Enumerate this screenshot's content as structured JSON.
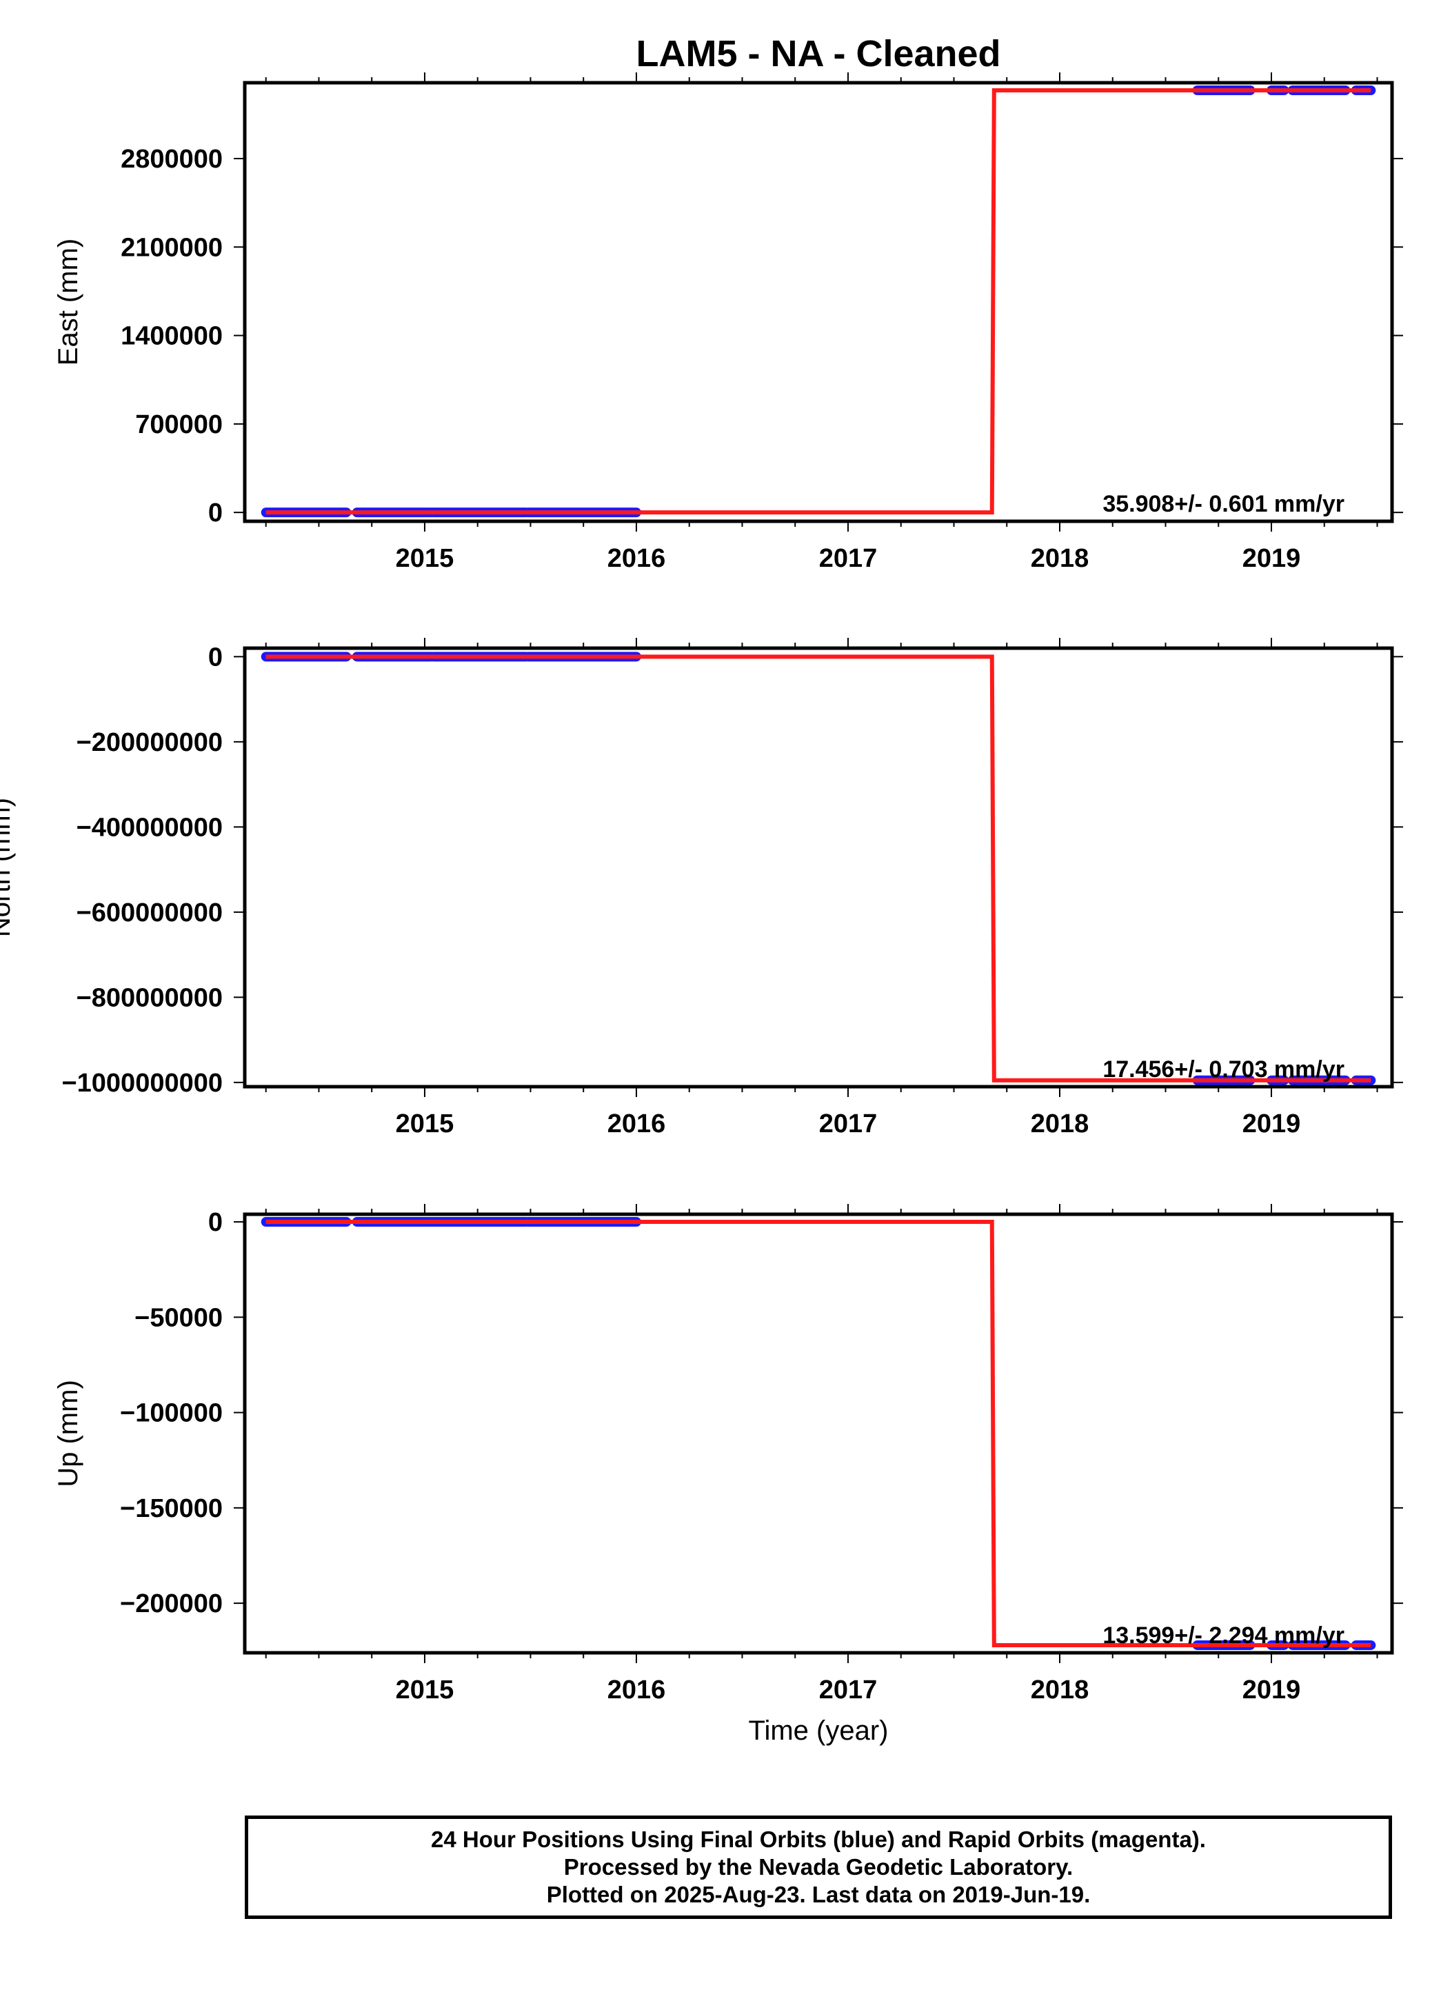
{
  "title": "LAM5  - NA - Cleaned",
  "colors": {
    "model": "#ff1a1a",
    "final": "#1a1aff",
    "rapid": "#e000e0",
    "frame": "#000000"
  },
  "chart_data": [
    {
      "type": "line",
      "ylabel": "East (mm)",
      "xlabel": "",
      "xlim": [
        2014.15,
        2019.57
      ],
      "ylim": [
        -70000,
        3400000
      ],
      "yticks": [
        0,
        700000,
        1400000,
        2100000,
        2800000
      ],
      "yticklabels": [
        "0",
        "700000",
        "1400000",
        "2100000",
        "2800000"
      ],
      "xticks": [
        2015,
        2016,
        2017,
        2018,
        2019
      ],
      "xticklabels": [
        "2015",
        "2016",
        "2017",
        "2018",
        "2019"
      ],
      "annotation": "35.908+/- 0.601 mm/yr",
      "model_line": [
        [
          2014.25,
          0
        ],
        [
          2017.68,
          0
        ],
        [
          2017.69,
          3340000
        ],
        [
          2019.47,
          3340000
        ]
      ],
      "data_segments": [
        [
          2014.25,
          2014.63,
          0
        ],
        [
          2014.68,
          2015.03,
          0
        ],
        [
          2015.04,
          2015.48,
          0
        ],
        [
          2015.49,
          2016.0,
          0
        ],
        [
          2018.65,
          2018.9,
          3340000
        ],
        [
          2019.0,
          2019.06,
          3340000
        ],
        [
          2019.1,
          2019.35,
          3340000
        ],
        [
          2019.4,
          2019.47,
          3340000
        ]
      ]
    },
    {
      "type": "line",
      "ylabel": "North (mm)",
      "xlabel": "",
      "xlim": [
        2014.15,
        2019.57
      ],
      "ylim": [
        -1010000000,
        20000000
      ],
      "yticks": [
        0,
        -200000000,
        -400000000,
        -600000000,
        -800000000,
        -1000000000
      ],
      "yticklabels": [
        "0",
        "−200000000",
        "−400000000",
        "−600000000",
        "−800000000",
        "−1000000000"
      ],
      "xticks": [
        2015,
        2016,
        2017,
        2018,
        2019
      ],
      "xticklabels": [
        "2015",
        "2016",
        "2017",
        "2018",
        "2019"
      ],
      "annotation": "17.456+/- 0.703 mm/yr",
      "model_line": [
        [
          2014.25,
          0
        ],
        [
          2017.68,
          0
        ],
        [
          2017.69,
          -995000000
        ],
        [
          2019.47,
          -995000000
        ]
      ],
      "data_segments": [
        [
          2014.25,
          2014.63,
          0
        ],
        [
          2014.68,
          2015.03,
          0
        ],
        [
          2015.04,
          2015.48,
          0
        ],
        [
          2015.49,
          2016.0,
          0
        ],
        [
          2018.65,
          2018.9,
          -995000000
        ],
        [
          2019.0,
          2019.06,
          -995000000
        ],
        [
          2019.1,
          2019.35,
          -995000000
        ],
        [
          2019.4,
          2019.47,
          -995000000
        ]
      ]
    },
    {
      "type": "line",
      "ylabel": "Up (mm)",
      "xlabel": "Time (year)",
      "xlim": [
        2014.15,
        2019.57
      ],
      "ylim": [
        -226000,
        4000
      ],
      "yticks": [
        0,
        -50000,
        -100000,
        -150000,
        -200000
      ],
      "yticklabels": [
        "0",
        "−50000",
        "−100000",
        "−150000",
        "−200000"
      ],
      "xticks": [
        2015,
        2016,
        2017,
        2018,
        2019
      ],
      "xticklabels": [
        "2015",
        "2016",
        "2017",
        "2018",
        "2019"
      ],
      "annotation": "13.599+/- 2.294 mm/yr",
      "model_line": [
        [
          2014.25,
          0
        ],
        [
          2017.68,
          0
        ],
        [
          2017.69,
          -222000
        ],
        [
          2019.47,
          -222000
        ]
      ],
      "data_segments": [
        [
          2014.25,
          2014.63,
          0
        ],
        [
          2014.68,
          2015.03,
          0
        ],
        [
          2015.04,
          2015.48,
          0
        ],
        [
          2015.49,
          2016.0,
          0
        ],
        [
          2018.65,
          2018.9,
          -222000
        ],
        [
          2019.0,
          2019.06,
          -222000
        ],
        [
          2019.1,
          2019.35,
          -222000
        ],
        [
          2019.4,
          2019.47,
          -222000
        ]
      ]
    }
  ],
  "footer": {
    "line1": "24 Hour Positions Using Final Orbits (blue) and Rapid Orbits (magenta).",
    "line2": "Processed by the Nevada Geodetic Laboratory.",
    "line3": "Plotted on 2025-Aug-23. Last data on 2019-Jun-19."
  }
}
